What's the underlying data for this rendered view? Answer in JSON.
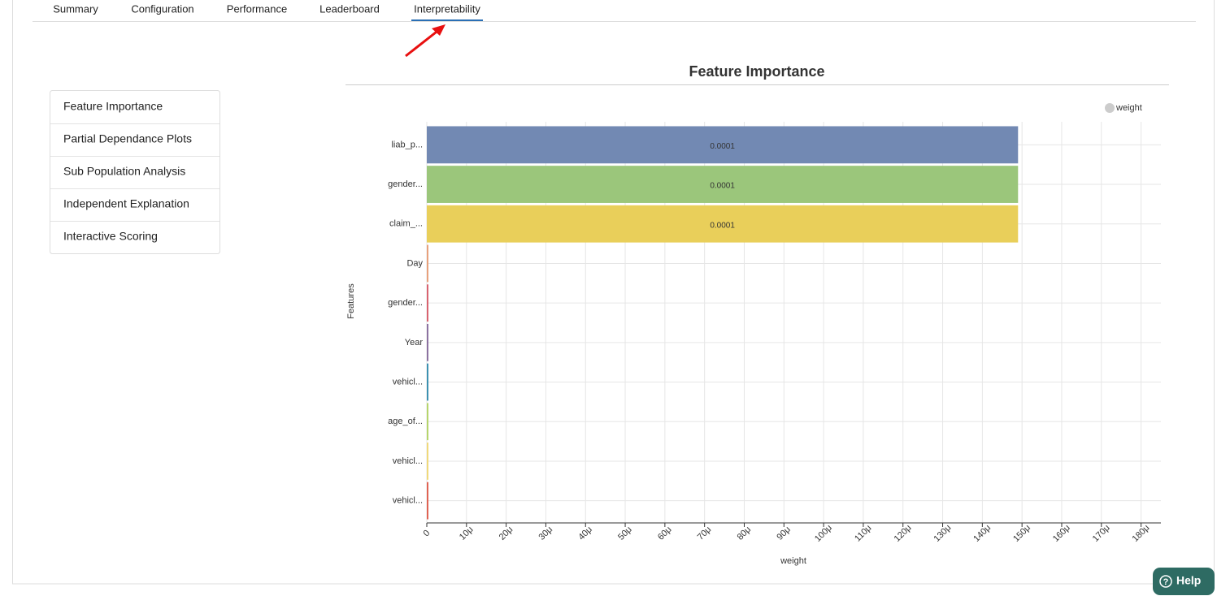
{
  "tabs": [
    "Summary",
    "Configuration",
    "Performance",
    "Leaderboard",
    "Interpretability"
  ],
  "menu": [
    "Feature Importance",
    "Partial Dependance Plots",
    "Sub Population Analysis",
    "Independent Explanation",
    "Interactive Scoring"
  ],
  "help": "Help",
  "chart_data": {
    "type": "bar",
    "orientation": "horizontal",
    "title": "Feature Importance",
    "x_label": "weight",
    "y_label": "Features",
    "categories": [
      "liab_p...",
      "gender...",
      "claim_...",
      "Day",
      "gender...",
      "Year",
      "vehicl...",
      "age_of...",
      "vehicl...",
      "vehicl..."
    ],
    "series": [
      {
        "name": "weight",
        "color": "#cccccc",
        "values": [
          0.000149,
          0.000149,
          0.000149,
          4e-07,
          4e-07,
          4e-07,
          4e-07,
          4e-07,
          4e-07,
          4e-07
        ],
        "value_labels": [
          "0.0001",
          "0.0001",
          "0.0001",
          null,
          null,
          null,
          null,
          null,
          null,
          null
        ]
      }
    ],
    "colors": [
      "#7289b3",
      "#9bc67b",
      "#e9cf5a",
      "#e8a07a",
      "#d9606e",
      "#8a6fa0",
      "#3a8fb0",
      "#b5d56a",
      "#f0d878",
      "#e06050"
    ],
    "xlim": [
      0,
      0.000185
    ],
    "xticks": [
      0,
      {
        "value": 1e-05,
        "label": "10μ"
      },
      {
        "value": 2e-05,
        "label": "20μ"
      },
      {
        "value": 3e-05,
        "label": "30μ"
      },
      {
        "value": 4e-05,
        "label": "40μ"
      },
      {
        "value": 5e-05,
        "label": "50μ"
      },
      {
        "value": 6e-05,
        "label": "60μ"
      },
      {
        "value": 7e-05,
        "label": "70μ"
      },
      {
        "value": 8e-05,
        "label": "80μ"
      },
      {
        "value": 9e-05,
        "label": "90μ"
      },
      {
        "value": 0.0001,
        "label": "100μ"
      },
      {
        "value": 0.00011,
        "label": "110μ"
      },
      {
        "value": 0.00012,
        "label": "120μ"
      },
      {
        "value": 0.00013,
        "label": "130μ"
      },
      {
        "value": 0.00014,
        "label": "140μ"
      },
      {
        "value": 0.00015,
        "label": "150μ"
      },
      {
        "value": 0.00016,
        "label": "160μ"
      },
      {
        "value": 0.00017,
        "label": "170μ"
      },
      {
        "value": 0.00018,
        "label": "180μ"
      }
    ],
    "grid": true,
    "legend": "top-right"
  }
}
